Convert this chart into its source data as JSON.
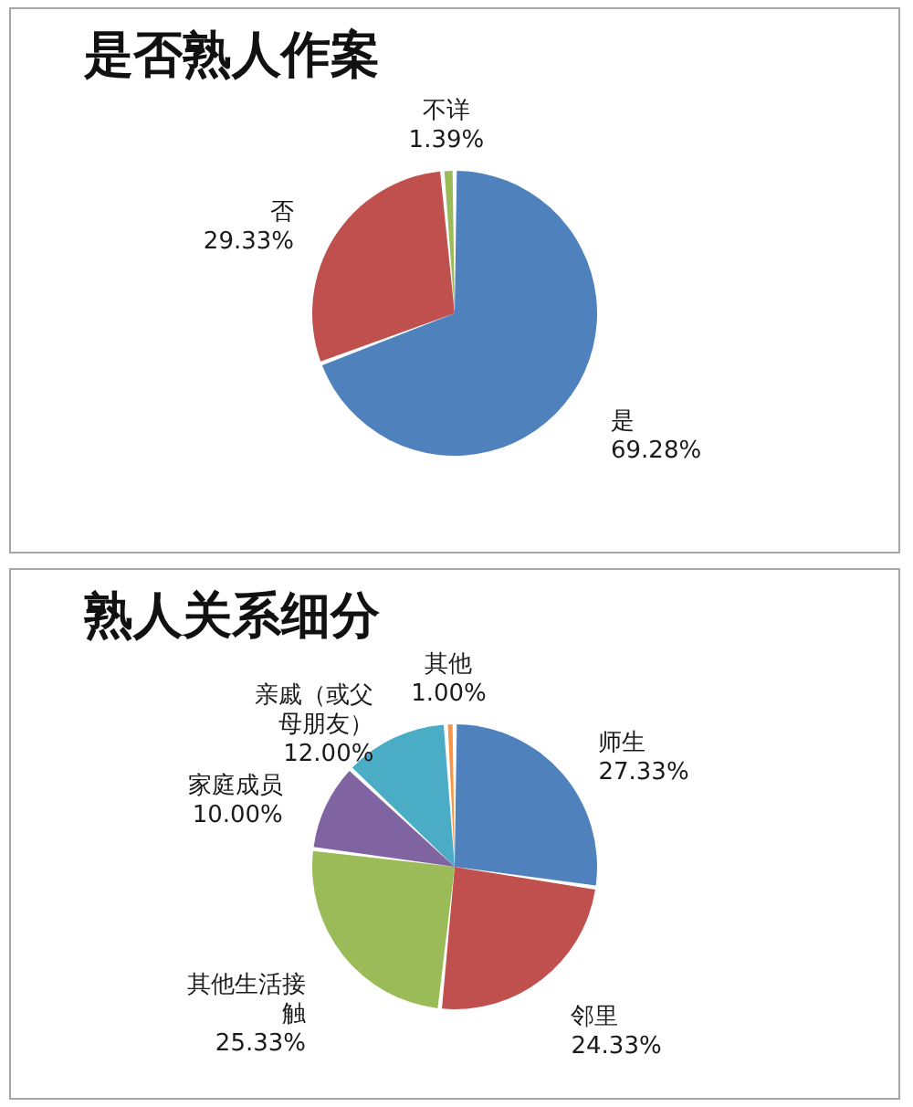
{
  "chart_data": [
    {
      "type": "pie",
      "title": "是否熟人作案",
      "categories": [
        "是",
        "否",
        "不详"
      ],
      "values": [
        69.28,
        29.33,
        1.39
      ],
      "colors": [
        "#4f81bd",
        "#c0504d",
        "#9bbb59"
      ],
      "value_labels": [
        "69.28%",
        "29.33%",
        "1.39%"
      ]
    },
    {
      "type": "pie",
      "title": "熟人关系细分",
      "categories": [
        "师生",
        "邻里",
        "其他生活接触",
        "家庭成员",
        "亲戚（或父母朋友）",
        "其他"
      ],
      "values": [
        27.33,
        24.33,
        25.33,
        10.0,
        12.0,
        1.0
      ],
      "colors": [
        "#4f81bd",
        "#c0504d",
        "#9bbb59",
        "#8064a2",
        "#4bacc6",
        "#f79646"
      ],
      "value_labels": [
        "27.33%",
        "24.33%",
        "25.33%",
        "10.00%",
        "12.00%",
        "1.00%"
      ]
    }
  ]
}
